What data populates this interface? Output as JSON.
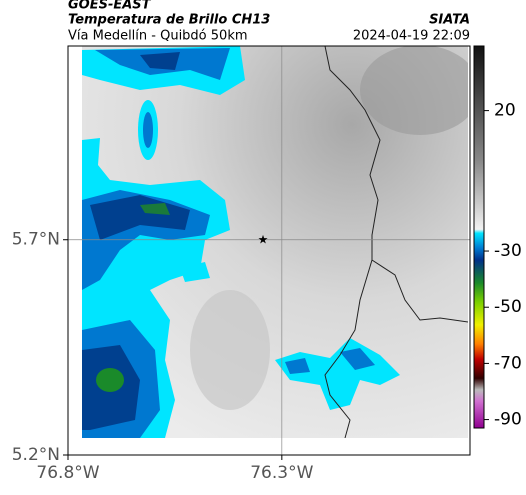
{
  "header": {
    "title": "GOES-EAST",
    "subtitle": "Temperatura de Brillo CH13",
    "location": "Vía Medellín - Quibdó 50km",
    "source": "SIATA",
    "datetime": "2024-04-19 22:09"
  },
  "map": {
    "xlim": [
      -76.8,
      -75.86
    ],
    "ylim": [
      5.2,
      6.15
    ],
    "xticks": [
      {
        "value": -76.8,
        "label": "76.8°W"
      },
      {
        "value": -76.3,
        "label": "76.3°W"
      }
    ],
    "yticks": [
      {
        "value": 5.7,
        "label": "5.7°N"
      },
      {
        "value": 5.2,
        "label": "5.2°N"
      }
    ]
  },
  "colorbar": {
    "lim": [
      43,
      -93
    ],
    "ticks": [
      20,
      -30,
      -50,
      -70,
      -90
    ]
  }
}
